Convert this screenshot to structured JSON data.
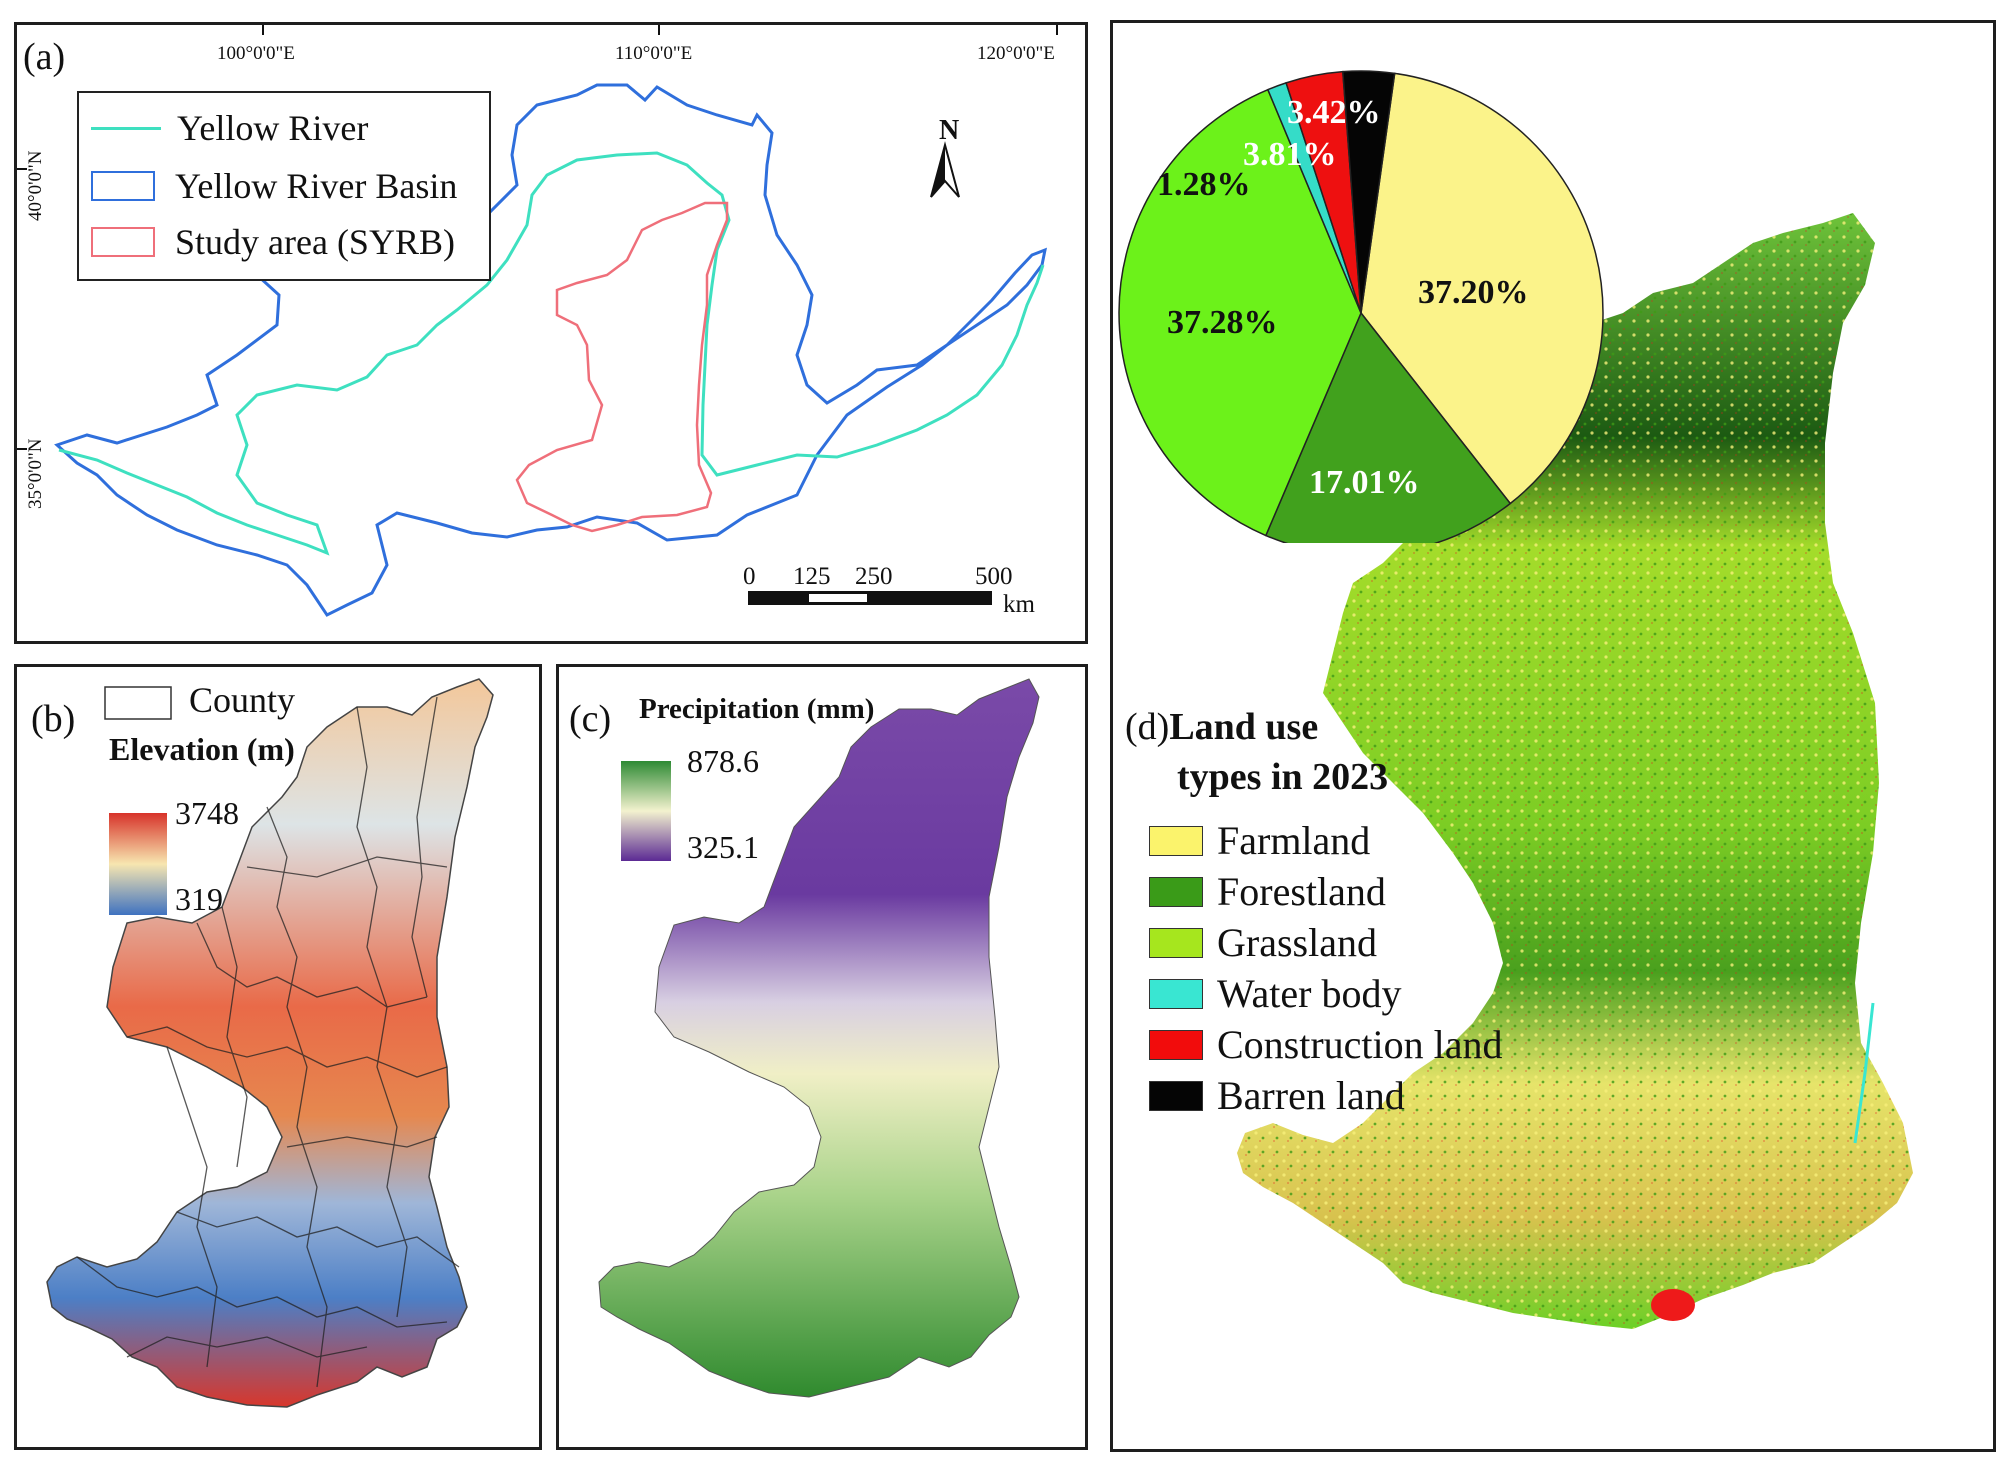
{
  "panel_a": {
    "label": "(a)",
    "legend": [
      {
        "label": "Yellow River",
        "color": "#3ee0c0",
        "kind": "line"
      },
      {
        "label": "Yellow River Basin",
        "color": "#2f6fdc",
        "kind": "box"
      },
      {
        "label": "Study area (SYRB)",
        "color": "#ef6f7a",
        "kind": "box"
      }
    ],
    "lon_ticks": [
      "100°0'0\"E",
      "110°0'0\"E",
      "120°0'0\"E"
    ],
    "lat_ticks": [
      "40°0'0\"N",
      "35°0'0\"N"
    ],
    "north": "N",
    "scale_ticks": [
      "0",
      "125",
      "250",
      "500"
    ],
    "scale_unit": "km"
  },
  "panel_b": {
    "label": "(b)",
    "county_label": "County",
    "title": "Elevation (m)",
    "max": "3748",
    "min": "319",
    "ramp_colors": [
      "#d7332a",
      "#f7e6b0",
      "#3f72c0"
    ]
  },
  "panel_c": {
    "label": "(c)",
    "title": "Precipitation (mm)",
    "max": "878.6",
    "min": "325.1",
    "ramp_colors": [
      "#2e8a34",
      "#f3f2cf",
      "#5b2a94"
    ]
  },
  "panel_d": {
    "label": "(d)",
    "title_line1": "Land use",
    "title_line2": "types in 2023",
    "legend": [
      {
        "label": "Farmland",
        "color": "#fbf36c"
      },
      {
        "label": "Forestland",
        "color": "#3a9b18"
      },
      {
        "label": "Grassland",
        "color": "#a6e61e"
      },
      {
        "label": "Water body",
        "color": "#39e6d2"
      },
      {
        "label": "Construction land",
        "color": "#f20c0c"
      },
      {
        "label": "Barren land",
        "color": "#050505"
      }
    ]
  },
  "chart_data": {
    "type": "pie",
    "slices": [
      {
        "name": "Farmland",
        "value": 37.2,
        "label": "37.20%",
        "color": "#fbf38a"
      },
      {
        "name": "Forestland",
        "value": 17.01,
        "label": "17.01%",
        "color": "#41a11d"
      },
      {
        "name": "Grassland",
        "value": 37.28,
        "label": "37.28%",
        "color": "#6cf21a"
      },
      {
        "name": "Water body",
        "value": 1.28,
        "label": "1.28%",
        "color": "#35dcc8"
      },
      {
        "name": "Construction land",
        "value": 3.81,
        "label": "3.81%",
        "color": "#ee1010"
      },
      {
        "name": "Barren land",
        "value": 3.42,
        "label": "3.42%",
        "color": "#050505"
      }
    ]
  }
}
